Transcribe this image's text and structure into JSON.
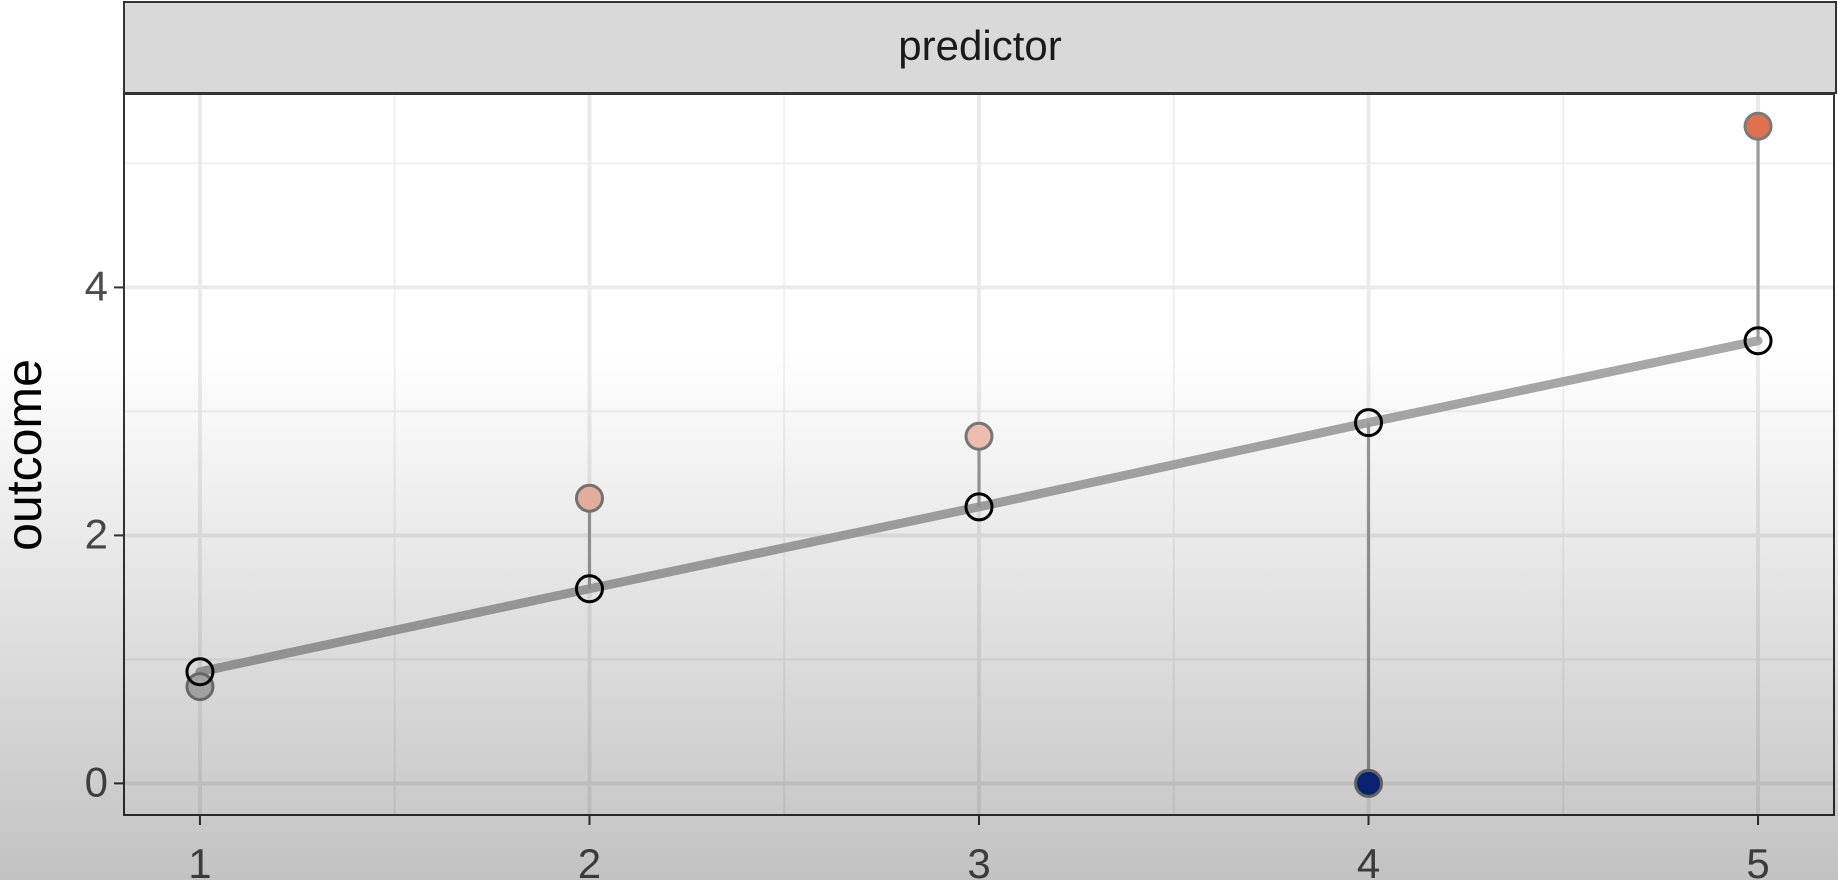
{
  "chart_data": {
    "type": "scatter",
    "strip": "predictor",
    "ylabel": "outcome",
    "x": [
      1,
      2,
      3,
      4,
      5
    ],
    "series": [
      {
        "values": [
          0.78,
          2.3,
          2.8,
          0,
          5.3
        ],
        "colors": [
          "#bdbdbd",
          "#f2b9a8",
          "#f6c4b4",
          "#0a2a8a",
          "#e0714f"
        ]
      },
      {
        "values": [
          0.9,
          1.57,
          2.23,
          2.91,
          3.57
        ],
        "color": "#a8a8a8"
      }
    ],
    "xlim": [
      0.805,
      5.195
    ],
    "ylim": [
      -0.255,
      5.56
    ],
    "xticks": [
      1,
      2,
      3,
      4,
      5
    ],
    "yticks": [
      0,
      2,
      4
    ],
    "xminor": [
      1.5,
      2.5,
      3.5,
      4.5
    ],
    "yminor": [
      1,
      3,
      5
    ],
    "grid": true
  }
}
